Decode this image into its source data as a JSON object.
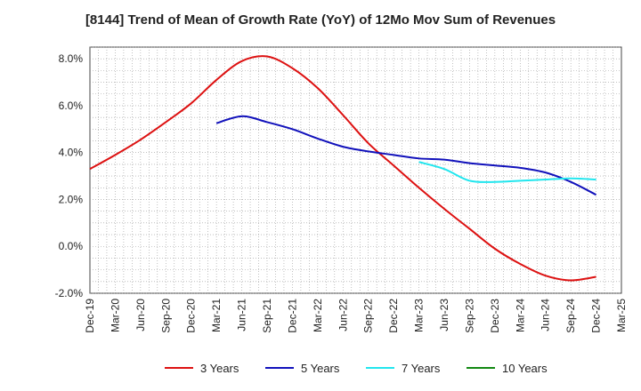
{
  "chart_data": {
    "type": "line",
    "title": "[8144]  Trend of Mean of Growth Rate (YoY) of 12Mo Mov Sum of Revenues",
    "xlabel": "",
    "ylabel": "",
    "ylim": [
      -2.0,
      8.5
    ],
    "yticks": [
      -2.0,
      0.0,
      2.0,
      4.0,
      6.0,
      8.0
    ],
    "ytick_labels": [
      "-2.0%",
      "0.0%",
      "2.0%",
      "4.0%",
      "6.0%",
      "8.0%"
    ],
    "categories": [
      "Dec-19",
      "Mar-20",
      "Jun-20",
      "Sep-20",
      "Dec-20",
      "Mar-21",
      "Jun-21",
      "Sep-21",
      "Dec-21",
      "Mar-22",
      "Jun-22",
      "Sep-22",
      "Dec-22",
      "Mar-23",
      "Jun-23",
      "Sep-23",
      "Dec-23",
      "Mar-24",
      "Jun-24",
      "Sep-24",
      "Dec-24",
      "Mar-25"
    ],
    "grid": true,
    "legend_position": "bottom",
    "series": [
      {
        "name": "3 Years",
        "color": "#dd1111",
        "values": [
          3.3,
          3.9,
          4.55,
          5.3,
          6.1,
          7.1,
          7.9,
          8.1,
          7.6,
          6.75,
          5.6,
          4.4,
          3.45,
          2.5,
          1.6,
          0.75,
          -0.1,
          -0.75,
          -1.25,
          -1.45,
          -1.3,
          null
        ]
      },
      {
        "name": "5 Years",
        "color": "#1111bb",
        "values": [
          null,
          null,
          null,
          null,
          null,
          5.25,
          5.55,
          5.3,
          5.0,
          4.6,
          4.25,
          4.05,
          3.9,
          3.75,
          3.7,
          3.55,
          3.45,
          3.35,
          3.15,
          2.75,
          2.2,
          null
        ]
      },
      {
        "name": "7 Years",
        "color": "#22e6ee",
        "values": [
          null,
          null,
          null,
          null,
          null,
          null,
          null,
          null,
          null,
          null,
          null,
          null,
          null,
          3.6,
          3.3,
          2.8,
          2.75,
          2.8,
          2.85,
          2.9,
          2.85,
          null
        ]
      },
      {
        "name": "10 Years",
        "color": "#118811",
        "values": [
          null,
          null,
          null,
          null,
          null,
          null,
          null,
          null,
          null,
          null,
          null,
          null,
          null,
          null,
          null,
          null,
          null,
          null,
          null,
          null,
          null,
          null
        ]
      }
    ]
  }
}
